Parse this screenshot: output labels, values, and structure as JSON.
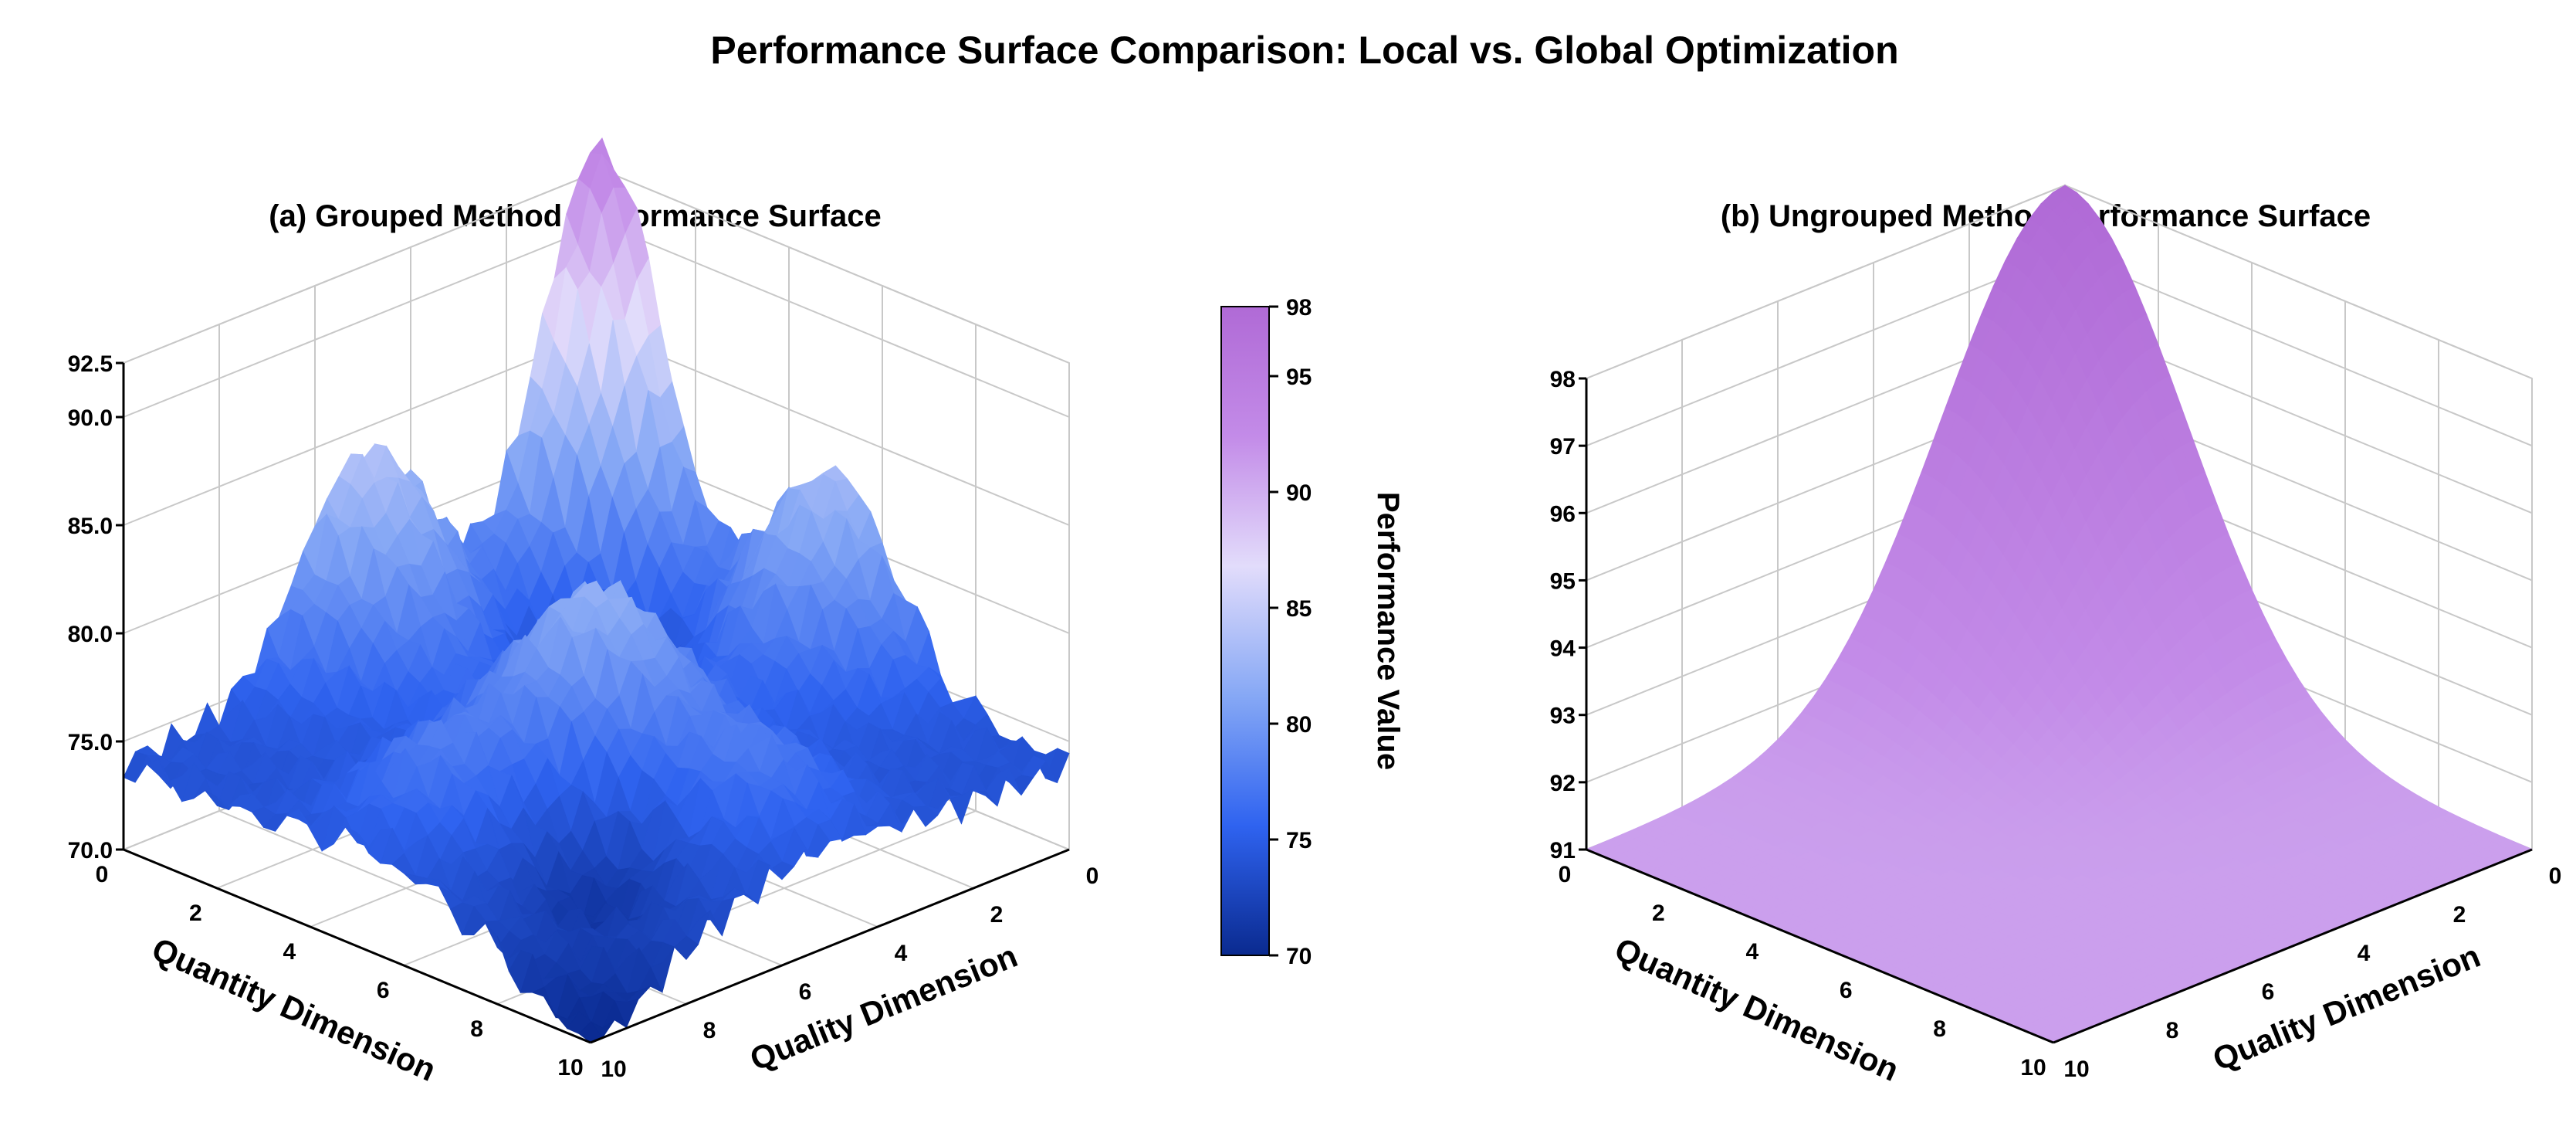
{
  "chart_data": {
    "title": "Performance Surface Comparison: Local vs. Global Optimization",
    "colorbar": {
      "label": "Performance Value",
      "range": [
        70,
        98
      ],
      "ticks": [
        "70",
        "75",
        "80",
        "85",
        "90",
        "95",
        "98"
      ],
      "colors": [
        "#0a2a8f",
        "#2f63f0",
        "#86a8f5",
        "#e2dcfb",
        "#c38be8",
        "#b06ad6"
      ]
    },
    "charts": [
      {
        "type": "surface3d",
        "title": "(a) Grouped Method Performance Surface",
        "xlabel": "Quantity Dimension",
        "ylabel": "Quality Dimension",
        "x_ticks": [
          "0",
          "2",
          "4",
          "6",
          "8",
          "10"
        ],
        "y_ticks": [
          "0",
          "2",
          "4",
          "6",
          "8",
          "10"
        ],
        "z_ticks": [
          "70.0",
          "75.0",
          "80.0",
          "85.0",
          "90.0",
          "92.5"
        ],
        "zlim": [
          70,
          92.5
        ],
        "peaks": [
          {
            "x": 0,
            "y": 0,
            "value": 93.5
          },
          {
            "x": 5,
            "y": 0,
            "value": 85
          },
          {
            "x": 0,
            "y": 5,
            "value": 84
          },
          {
            "x": 5,
            "y": 5,
            "value": 82
          },
          {
            "x": 8,
            "y": 5,
            "value": 78
          },
          {
            "x": 5,
            "y": 8,
            "value": 78
          }
        ],
        "valleys": [
          {
            "x": 10,
            "y": 10,
            "value": 70
          },
          {
            "x": 7,
            "y": 7,
            "value": 72
          }
        ]
      },
      {
        "type": "surface3d",
        "title": "(b) Ungrouped Method Performance Surface",
        "xlabel": "Quantity Dimension",
        "ylabel": "Quality Dimension",
        "x_ticks": [
          "0",
          "2",
          "4",
          "6",
          "8",
          "10"
        ],
        "y_ticks": [
          "0",
          "2",
          "4",
          "6",
          "8",
          "10"
        ],
        "z_ticks": [
          "91",
          "92",
          "93",
          "94",
          "95",
          "96",
          "97",
          "98"
        ],
        "zlim": [
          91,
          98
        ],
        "peaks": [
          {
            "x": 0,
            "y": 0,
            "value": 98
          }
        ],
        "baseline": 91
      }
    ]
  }
}
